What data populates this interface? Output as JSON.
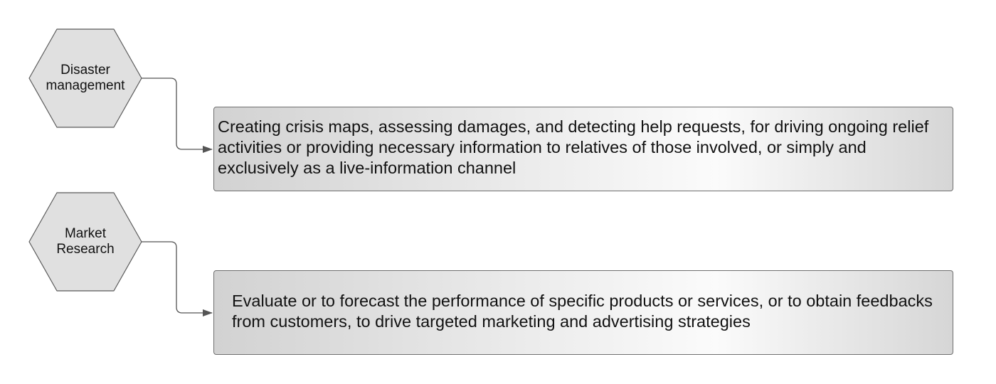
{
  "diagram": {
    "rows": [
      {
        "category": "Disaster\nmanagement",
        "description": "Creating crisis maps, assessing damages, and detecting help requests, for driving ongoing relief activities or providing necessary information to relatives of those involved, or simply and exclusively as a live-information channel"
      },
      {
        "category": "Market\nResearch",
        "description": "Evaluate or to forecast the performance of specific products or services, or to obtain feedbacks from customers, to drive targeted marketing and advertising strategies"
      }
    ],
    "colors": {
      "shape_fill": "#e0e0e0",
      "shape_stroke": "#5a5a5a",
      "connector": "#555555",
      "box_gradient_edge": "#d2d2d2",
      "box_gradient_center": "#fbfbfb"
    }
  }
}
